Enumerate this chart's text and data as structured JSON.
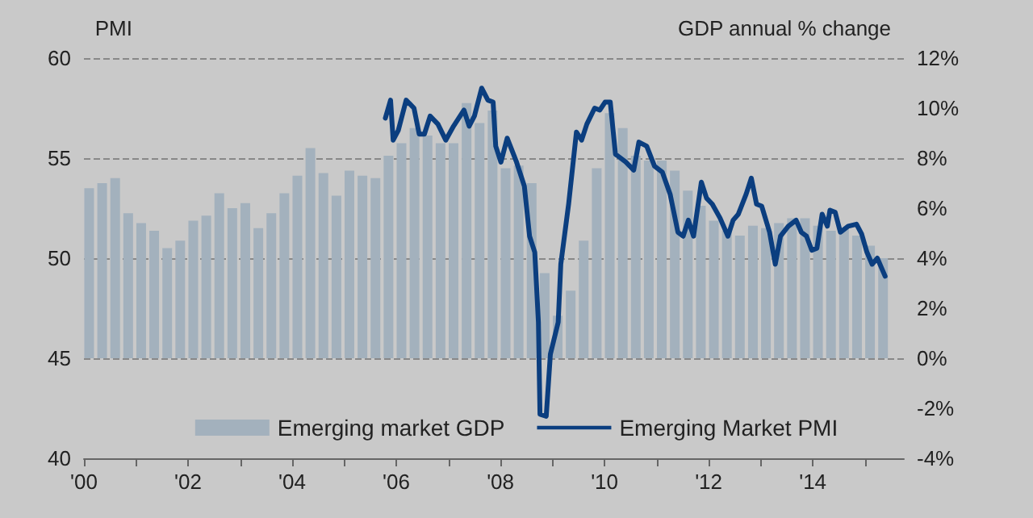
{
  "chart_data": {
    "type": "bar",
    "ylabel": "PMI",
    "y2label": "GDP annual % change",
    "xlim": [
      2000,
      2015.75
    ],
    "xticks": [
      {
        "value": 2000,
        "label": "'00"
      },
      {
        "value": 2001,
        "label": null
      },
      {
        "value": 2002,
        "label": "'02"
      },
      {
        "value": 2003,
        "label": null
      },
      {
        "value": 2004,
        "label": "'04"
      },
      {
        "value": 2005,
        "label": null
      },
      {
        "value": 2006,
        "label": "'06"
      },
      {
        "value": 2007,
        "label": null
      },
      {
        "value": 2008,
        "label": "'08"
      },
      {
        "value": 2009,
        "label": null
      },
      {
        "value": 2010,
        "label": "'10"
      },
      {
        "value": 2011,
        "label": null
      },
      {
        "value": 2012,
        "label": "'12"
      },
      {
        "value": 2013,
        "label": null
      },
      {
        "value": 2014,
        "label": "'14"
      },
      {
        "value": 2015,
        "label": null
      }
    ],
    "ylim": [
      40,
      60
    ],
    "yticks": [
      40,
      45,
      50,
      55,
      60
    ],
    "y2lim": [
      -4,
      12
    ],
    "y2ticks": [
      {
        "value": -4,
        "label": "-4%"
      },
      {
        "value": -2,
        "label": "-2%"
      },
      {
        "value": 0,
        "label": "0%"
      },
      {
        "value": 2,
        "label": "2%"
      },
      {
        "value": 4,
        "label": "4%"
      },
      {
        "value": 6,
        "label": "6%"
      },
      {
        "value": 8,
        "label": "8%"
      },
      {
        "value": 10,
        "label": "10%"
      },
      {
        "value": 12,
        "label": "12%"
      }
    ],
    "grid": "y",
    "legend": "bottom",
    "series": [
      {
        "name": "Emerging market GDP",
        "axis": "y2",
        "color": "#a3b1bd",
        "x": [
          2000.1,
          2000.35,
          2000.6,
          2000.85,
          2001.1,
          2001.35,
          2001.6,
          2001.85,
          2002.1,
          2002.35,
          2002.6,
          2002.85,
          2003.1,
          2003.35,
          2003.6,
          2003.85,
          2004.1,
          2004.35,
          2004.6,
          2004.85,
          2005.1,
          2005.35,
          2005.6,
          2005.85,
          2006.1,
          2006.35,
          2006.6,
          2006.85,
          2007.1,
          2007.35,
          2007.6,
          2007.85,
          2008.1,
          2008.35,
          2008.6,
          2008.85,
          2009.1,
          2009.35,
          2009.6,
          2009.85,
          2010.1,
          2010.35,
          2010.6,
          2010.85,
          2011.1,
          2011.35,
          2011.6,
          2011.85,
          2012.1,
          2012.35,
          2012.6,
          2012.85,
          2013.1,
          2013.35,
          2013.6,
          2013.85,
          2014.1,
          2014.35,
          2014.6,
          2014.85,
          2015.1,
          2015.35
        ],
        "values": [
          6.8,
          7.0,
          7.2,
          5.8,
          5.4,
          5.1,
          4.4,
          4.7,
          5.5,
          5.7,
          6.6,
          6.0,
          6.2,
          5.2,
          5.8,
          6.6,
          7.3,
          8.4,
          7.4,
          6.5,
          7.5,
          7.3,
          7.2,
          8.1,
          8.6,
          9.2,
          8.9,
          8.6,
          8.6,
          10.2,
          9.4,
          9.9,
          7.6,
          7.7,
          7.0,
          3.4,
          1.7,
          2.7,
          4.7,
          7.6,
          9.8,
          9.2,
          8.1,
          7.9,
          7.9,
          7.5,
          6.7,
          6.1,
          5.5,
          5.1,
          4.9,
          5.3,
          5.2,
          5.4,
          5.6,
          5.6,
          5.3,
          5.1,
          5.2,
          4.9,
          4.5,
          4.0
        ]
      },
      {
        "name": "Emerging Market PMI",
        "type": "line",
        "axis": "y",
        "color": "#0b3e7f",
        "marker": "none",
        "line_style": "solid",
        "x": [
          2005.79,
          2005.89,
          2005.94,
          2006.04,
          2006.19,
          2006.34,
          2006.44,
          2006.54,
          2006.65,
          2006.8,
          2006.95,
          2007.1,
          2007.3,
          2007.4,
          2007.5,
          2007.64,
          2007.76,
          2007.86,
          2007.91,
          2008.01,
          2008.13,
          2008.31,
          2008.46,
          2008.56,
          2008.66,
          2008.73,
          2008.76,
          2008.88,
          2008.96,
          2009.11,
          2009.16,
          2009.31,
          2009.46,
          2009.56,
          2009.66,
          2009.81,
          2009.91,
          2010.01,
          2010.11,
          2010.21,
          2010.41,
          2010.56,
          2010.66,
          2010.81,
          2010.96,
          2011.11,
          2011.26,
          2011.41,
          2011.51,
          2011.61,
          2011.71,
          2011.86,
          2011.96,
          2012.07,
          2012.22,
          2012.37,
          2012.47,
          2012.57,
          2012.72,
          2012.82,
          2012.92,
          2013.02,
          2013.17,
          2013.28,
          2013.38,
          2013.53,
          2013.68,
          2013.78,
          2013.88,
          2013.98,
          2014.08,
          2014.18,
          2014.28,
          2014.33,
          2014.43,
          2014.53,
          2014.68,
          2014.84,
          2014.94,
          2015.04,
          2015.14,
          2015.24,
          2015.39
        ],
        "values": [
          57.0,
          57.9,
          55.9,
          56.4,
          57.9,
          57.5,
          56.2,
          56.2,
          57.1,
          56.7,
          55.9,
          56.6,
          57.4,
          56.6,
          57.1,
          58.5,
          57.9,
          57.8,
          55.6,
          54.8,
          56.0,
          54.8,
          53.6,
          51.1,
          50.3,
          46.8,
          42.2,
          42.1,
          45.2,
          46.8,
          49.7,
          52.7,
          56.3,
          55.9,
          56.7,
          57.5,
          57.4,
          57.8,
          57.8,
          55.2,
          54.8,
          54.4,
          55.8,
          55.6,
          54.6,
          54.3,
          53.2,
          51.3,
          51.1,
          51.9,
          51.1,
          53.8,
          53.0,
          52.7,
          52.0,
          51.1,
          51.9,
          52.2,
          53.2,
          54.0,
          52.7,
          52.6,
          51.3,
          49.7,
          51.1,
          51.6,
          51.9,
          51.3,
          51.1,
          50.4,
          50.5,
          52.2,
          51.6,
          52.4,
          52.3,
          51.3,
          51.6,
          51.7,
          51.2,
          50.3,
          49.7,
          50.0,
          49.1
        ]
      }
    ]
  }
}
